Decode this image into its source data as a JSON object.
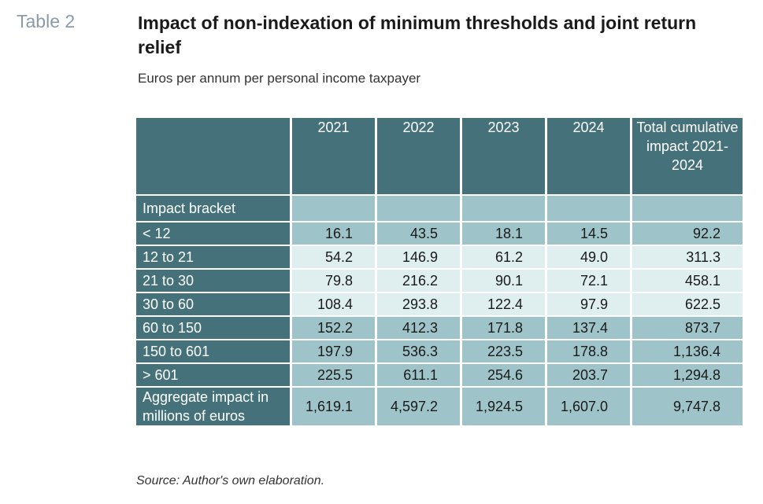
{
  "table_label": "Table 2",
  "title": "Impact of non-indexation of minimum thresholds and joint return relief",
  "subtitle": "Euros per annum per personal income taxpayer",
  "columns": [
    "2021",
    "2022",
    "2023",
    "2024",
    "Total cumulative impact 2021-2024"
  ],
  "section_label": "Impact bracket",
  "rows": [
    {
      "label": "< 12",
      "values": [
        "16.1",
        "43.5",
        "18.1",
        "14.5",
        "92.2"
      ]
    },
    {
      "label": "12 to 21",
      "values": [
        "54.2",
        "146.9",
        "61.2",
        "49.0",
        "311.3"
      ]
    },
    {
      "label": "21 to 30",
      "values": [
        "79.8",
        "216.2",
        "90.1",
        "72.1",
        "458.1"
      ]
    },
    {
      "label": "30 to 60",
      "values": [
        "108.4",
        "293.8",
        "122.4",
        "97.9",
        "622.5"
      ]
    },
    {
      "label": "60 to 150",
      "values": [
        "152.2",
        "412.3",
        "171.8",
        "137.4",
        "873.7"
      ]
    },
    {
      "label": "150 to 601",
      "values": [
        "197.9",
        "536.3",
        "223.5",
        "178.8",
        "1,136.4"
      ]
    },
    {
      "label": "> 601",
      "values": [
        "225.5",
        "611.1",
        "254.6",
        "203.7",
        "1,294.8"
      ]
    }
  ],
  "aggregate": {
    "label": "Aggregate impact in millions of euros",
    "values": [
      "1,619.1",
      "4,597.2",
      "1,924.5",
      "1,607.0",
      "9,747.8"
    ]
  },
  "source": "Source: Author's own elaboration.",
  "colors": {
    "header": "#45727a",
    "band_dark": "#9ec4c9",
    "band_light": "#dfeeef"
  }
}
